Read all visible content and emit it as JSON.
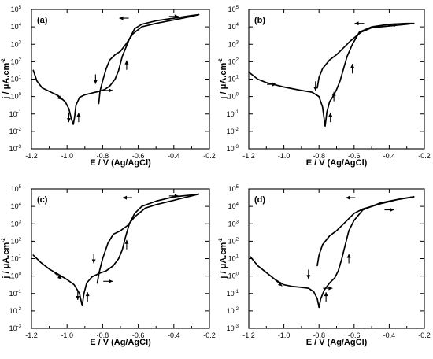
{
  "chart_data": [
    {
      "type": "line",
      "panel": "(a)",
      "xlabel": "E / V (Ag/AgCl)",
      "ylabel": "j / μA.cm",
      "ylabel_sup": "-2",
      "x_scale": "linear",
      "y_scale": "log",
      "xlim": [
        -1.2,
        -0.2
      ],
      "ylim": [
        -3,
        5
      ],
      "x_ticks": [
        "-1.2",
        "-1.0",
        "-0.8",
        "-0.6",
        "-0.4",
        "-0.2"
      ],
      "y_ticks": [
        "10",
        "10",
        "10",
        "10",
        "10",
        "10",
        "10",
        "10",
        "10"
      ],
      "y_tick_exponents": [
        "-3",
        "-2",
        "-1",
        "0",
        "1",
        "2",
        "3",
        "4",
        "5"
      ],
      "series": [
        {
          "values": [
            [
              -1.19,
              1.5
            ],
            [
              -1.17,
              0.9
            ],
            [
              -1.14,
              0.5
            ],
            [
              -1.1,
              0.3
            ],
            [
              -1.05,
              0.05
            ],
            [
              -1.01,
              -0.3
            ],
            [
              -0.99,
              -0.7
            ],
            [
              -0.975,
              -1.3
            ],
            [
              -0.965,
              -1.6
            ],
            [
              -0.958,
              -1.2
            ],
            [
              -0.95,
              -0.5
            ],
            [
              -0.93,
              -0.05
            ],
            [
              -0.9,
              0.1
            ],
            [
              -0.86,
              0.2
            ],
            [
              -0.82,
              0.3
            ],
            [
              -0.79,
              0.4
            ],
            [
              -0.76,
              0.6
            ],
            [
              -0.73,
              1.0
            ],
            [
              -0.71,
              1.5
            ],
            [
              -0.69,
              2.3
            ],
            [
              -0.67,
              2.8
            ],
            [
              -0.65,
              3.3
            ],
            [
              -0.62,
              3.9
            ],
            [
              -0.58,
              4.15
            ],
            [
              -0.5,
              4.35
            ],
            [
              -0.4,
              4.5
            ],
            [
              -0.3,
              4.65
            ],
            [
              -0.26,
              4.7
            ]
          ]
        },
        {
          "values": [
            [
              -0.26,
              4.7
            ],
            [
              -0.3,
              4.6
            ],
            [
              -0.4,
              4.4
            ],
            [
              -0.5,
              4.2
            ],
            [
              -0.58,
              4.0
            ],
            [
              -0.63,
              3.6
            ],
            [
              -0.67,
              3.0
            ],
            [
              -0.7,
              2.6
            ],
            [
              -0.73,
              2.4
            ],
            [
              -0.76,
              2.1
            ],
            [
              -0.78,
              1.6
            ],
            [
              -0.8,
              0.9
            ],
            [
              -0.815,
              0.3
            ],
            [
              -0.82,
              -0.2
            ],
            [
              -0.822,
              -0.4
            ]
          ]
        }
      ],
      "annotations": [
        {
          "type": "arrow",
          "direction": "down-right",
          "near": [
            -1.05,
            0.0
          ]
        },
        {
          "type": "arrow",
          "direction": "down",
          "near": [
            -0.99,
            -1.2
          ]
        },
        {
          "type": "arrow",
          "direction": "up",
          "near": [
            -0.935,
            -1.2
          ]
        },
        {
          "type": "arrow",
          "direction": "down",
          "near": [
            -0.84,
            1.0
          ]
        },
        {
          "type": "arrow",
          "direction": "right",
          "near": [
            -0.77,
            0.35
          ]
        },
        {
          "type": "arrow",
          "direction": "up",
          "near": [
            -0.665,
            1.8
          ]
        },
        {
          "type": "arrow",
          "direction": "left",
          "near": [
            -0.68,
            4.5
          ]
        },
        {
          "type": "arrow",
          "direction": "right",
          "near": [
            -0.4,
            4.6
          ]
        }
      ]
    },
    {
      "type": "line",
      "panel": "(b)",
      "xlabel": "E / V (Ag/AgCl)",
      "ylabel": "j / μA.cm",
      "ylabel_sup": "-2",
      "x_scale": "linear",
      "y_scale": "log",
      "xlim": [
        -1.2,
        -0.2
      ],
      "ylim": [
        -3,
        5
      ],
      "x_ticks": [
        "-1.2",
        "-1.0",
        "-0.8",
        "-0.6",
        "-0.4",
        "-0.2"
      ],
      "y_ticks": [
        "10",
        "10",
        "10",
        "10",
        "10",
        "10",
        "10",
        "10",
        "10"
      ],
      "y_tick_exponents": [
        "-3",
        "-2",
        "-1",
        "0",
        "1",
        "2",
        "3",
        "4",
        "5"
      ],
      "series": [
        {
          "values": [
            [
              -1.2,
              1.4
            ],
            [
              -1.15,
              1.0
            ],
            [
              -1.1,
              0.8
            ],
            [
              -1.0,
              0.55
            ],
            [
              -0.9,
              0.35
            ],
            [
              -0.84,
              0.25
            ],
            [
              -0.8,
              0.0
            ],
            [
              -0.78,
              -0.6
            ],
            [
              -0.765,
              -1.7
            ],
            [
              -0.755,
              -0.9
            ],
            [
              -0.74,
              -0.3
            ],
            [
              -0.72,
              0.0
            ],
            [
              -0.7,
              0.4
            ],
            [
              -0.68,
              0.9
            ],
            [
              -0.66,
              1.6
            ],
            [
              -0.64,
              2.3
            ],
            [
              -0.61,
              3.0
            ],
            [
              -0.57,
              3.7
            ],
            [
              -0.5,
              4.0
            ],
            [
              -0.4,
              4.15
            ],
            [
              -0.3,
              4.2
            ],
            [
              -0.26,
              4.2
            ]
          ]
        },
        {
          "values": [
            [
              -0.26,
              4.2
            ],
            [
              -0.3,
              4.15
            ],
            [
              -0.4,
              4.05
            ],
            [
              -0.5,
              3.95
            ],
            [
              -0.56,
              3.7
            ],
            [
              -0.62,
              3.2
            ],
            [
              -0.66,
              2.8
            ],
            [
              -0.7,
              2.4
            ],
            [
              -0.74,
              2.1
            ],
            [
              -0.78,
              1.6
            ],
            [
              -0.8,
              1.1
            ],
            [
              -0.81,
              0.5
            ]
          ]
        }
      ],
      "annotations": [
        {
          "type": "arrow",
          "direction": "right",
          "near": [
            -1.07,
            0.7
          ]
        },
        {
          "type": "arrow",
          "direction": "down",
          "near": [
            -0.82,
            0.6
          ]
        },
        {
          "type": "arrow",
          "direction": "up",
          "near": [
            -0.735,
            -1.2
          ]
        },
        {
          "type": "arrow",
          "direction": "up",
          "near": [
            -0.715,
            0.0
          ]
        },
        {
          "type": "arrow",
          "direction": "up",
          "near": [
            -0.61,
            1.6
          ]
        },
        {
          "type": "arrow",
          "direction": "left",
          "near": [
            -0.57,
            4.2
          ]
        },
        {
          "type": "arrow",
          "direction": "right",
          "near": [
            -0.38,
            4.1
          ]
        }
      ]
    },
    {
      "type": "line",
      "panel": "(c)",
      "xlabel": "E / V (Ag/AgCl)",
      "ylabel": "j / μA.cm",
      "ylabel_sup": "-2",
      "x_scale": "linear",
      "y_scale": "log",
      "xlim": [
        -1.2,
        -0.2
      ],
      "ylim": [
        -3,
        5
      ],
      "x_ticks": [
        "-1.2",
        "-1.0",
        "-0.8",
        "-0.6",
        "-0.4",
        "-0.2"
      ],
      "y_ticks": [
        "10",
        "10",
        "10",
        "10",
        "10",
        "10",
        "10",
        "10",
        "10"
      ],
      "y_tick_exponents": [
        "-3",
        "-2",
        "-1",
        "0",
        "1",
        "2",
        "3",
        "4",
        "5"
      ],
      "series": [
        {
          "values": [
            [
              -1.19,
              1.2
            ],
            [
              -1.15,
              0.8
            ],
            [
              -1.1,
              0.4
            ],
            [
              -1.05,
              0.1
            ],
            [
              -1.0,
              -0.2
            ],
            [
              -0.96,
              -0.5
            ],
            [
              -0.93,
              -1.0
            ],
            [
              -0.915,
              -1.7
            ],
            [
              -0.905,
              -1.0
            ],
            [
              -0.89,
              -0.4
            ],
            [
              -0.86,
              -0.05
            ],
            [
              -0.82,
              0.15
            ],
            [
              -0.78,
              0.3
            ],
            [
              -0.74,
              0.6
            ],
            [
              -0.71,
              1.0
            ],
            [
              -0.69,
              1.5
            ],
            [
              -0.67,
              2.3
            ],
            [
              -0.65,
              3.0
            ],
            [
              -0.62,
              3.6
            ],
            [
              -0.58,
              4.0
            ],
            [
              -0.5,
              4.3
            ],
            [
              -0.4,
              4.55
            ],
            [
              -0.3,
              4.65
            ],
            [
              -0.26,
              4.7
            ]
          ]
        },
        {
          "values": [
            [
              -0.26,
              4.7
            ],
            [
              -0.3,
              4.6
            ],
            [
              -0.4,
              4.35
            ],
            [
              -0.5,
              4.1
            ],
            [
              -0.56,
              3.9
            ],
            [
              -0.62,
              3.4
            ],
            [
              -0.66,
              2.9
            ],
            [
              -0.7,
              2.6
            ],
            [
              -0.74,
              2.4
            ],
            [
              -0.77,
              1.9
            ],
            [
              -0.8,
              1.0
            ],
            [
              -0.82,
              0.2
            ],
            [
              -0.83,
              -0.4
            ]
          ]
        }
      ],
      "annotations": [
        {
          "type": "arrow",
          "direction": "down-right",
          "near": [
            -1.05,
            0.0
          ]
        },
        {
          "type": "arrow",
          "direction": "down",
          "near": [
            -0.94,
            -1.1
          ]
        },
        {
          "type": "arrow",
          "direction": "up",
          "near": [
            -0.885,
            -1.2
          ]
        },
        {
          "type": "arrow",
          "direction": "down",
          "near": [
            -0.85,
            1.0
          ]
        },
        {
          "type": "arrow",
          "direction": "right",
          "near": [
            -0.77,
            -0.3
          ]
        },
        {
          "type": "arrow",
          "direction": "up",
          "near": [
            -0.665,
            1.8
          ]
        },
        {
          "type": "arrow",
          "direction": "left",
          "near": [
            -0.66,
            4.5
          ]
        },
        {
          "type": "arrow",
          "direction": "right",
          "near": [
            -0.4,
            4.6
          ]
        }
      ]
    },
    {
      "type": "line",
      "panel": "(d)",
      "xlabel": "E / V (Ag/AgCl)",
      "ylabel": "j / μA.cm",
      "ylabel_sup": "-2",
      "x_scale": "linear",
      "y_scale": "log",
      "xlim": [
        -1.2,
        -0.2
      ],
      "ylim": [
        -3,
        5
      ],
      "x_ticks": [
        "-1.2",
        "-1.0",
        "-0.8",
        "-0.6",
        "-0.4",
        "-0.2"
      ],
      "y_ticks": [
        "10",
        "10",
        "10",
        "10",
        "10",
        "10",
        "10",
        "10",
        "10"
      ],
      "y_tick_exponents": [
        "-3",
        "-2",
        "-1",
        "0",
        "1",
        "2",
        "3",
        "4",
        "5"
      ],
      "series": [
        {
          "values": [
            [
              -1.19,
              1.1
            ],
            [
              -1.15,
              0.6
            ],
            [
              -1.1,
              0.2
            ],
            [
              -1.05,
              -0.2
            ],
            [
              -1.0,
              -0.5
            ],
            [
              -0.95,
              -0.6
            ],
            [
              -0.9,
              -0.65
            ],
            [
              -0.86,
              -0.7
            ],
            [
              -0.83,
              -0.9
            ],
            [
              -0.81,
              -1.3
            ],
            [
              -0.8,
              -1.8
            ],
            [
              -0.79,
              -1.3
            ],
            [
              -0.77,
              -0.8
            ],
            [
              -0.74,
              -0.4
            ],
            [
              -0.71,
              -0.1
            ],
            [
              -0.69,
              0.3
            ],
            [
              -0.67,
              1.0
            ],
            [
              -0.65,
              1.8
            ],
            [
              -0.63,
              2.6
            ],
            [
              -0.6,
              3.2
            ],
            [
              -0.55,
              3.8
            ],
            [
              -0.45,
              4.2
            ],
            [
              -0.35,
              4.4
            ],
            [
              -0.26,
              4.55
            ]
          ]
        },
        {
          "values": [
            [
              -0.26,
              4.55
            ],
            [
              -0.35,
              4.4
            ],
            [
              -0.45,
              4.15
            ],
            [
              -0.55,
              3.85
            ],
            [
              -0.6,
              3.6
            ],
            [
              -0.66,
              3.0
            ],
            [
              -0.7,
              2.6
            ],
            [
              -0.74,
              2.3
            ],
            [
              -0.78,
              1.8
            ],
            [
              -0.8,
              1.2
            ],
            [
              -0.81,
              0.6
            ]
          ]
        }
      ],
      "annotations": [
        {
          "type": "arrow",
          "direction": "down-right",
          "near": [
            -1.03,
            -0.4
          ]
        },
        {
          "type": "arrow",
          "direction": "down",
          "near": [
            -0.86,
            0.1
          ]
        },
        {
          "type": "arrow",
          "direction": "up",
          "near": [
            -0.76,
            -1.2
          ]
        },
        {
          "type": "arrow",
          "direction": "right",
          "near": [
            -0.75,
            -0.7
          ]
        },
        {
          "type": "arrow",
          "direction": "up",
          "near": [
            -0.63,
            1.0
          ]
        },
        {
          "type": "arrow",
          "direction": "left",
          "near": [
            -0.62,
            4.5
          ]
        },
        {
          "type": "arrow",
          "direction": "right",
          "near": [
            -0.4,
            3.8
          ]
        }
      ]
    }
  ]
}
